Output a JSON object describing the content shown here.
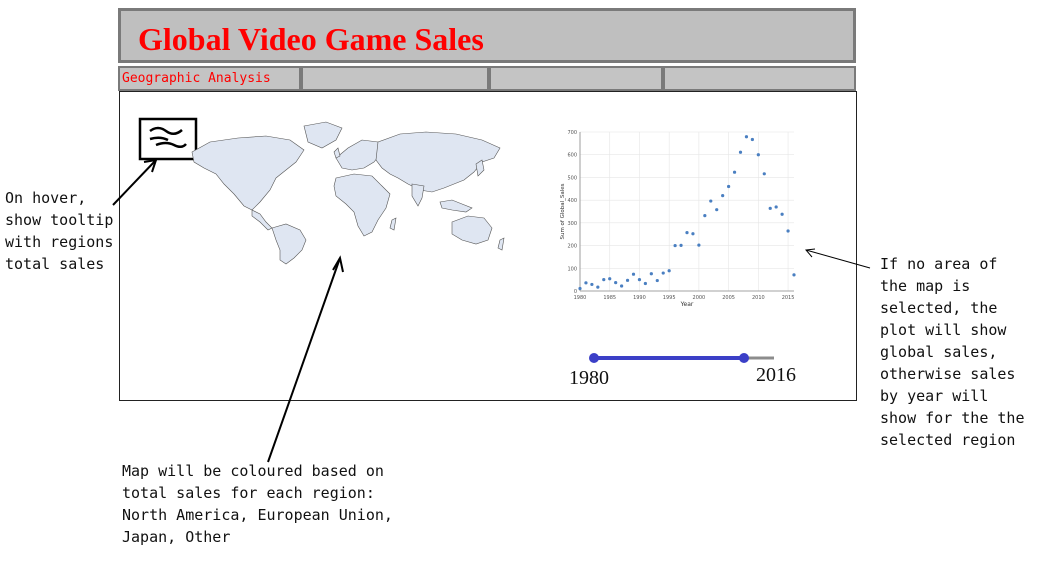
{
  "header": {
    "title": "Global Video Game Sales"
  },
  "tabs": [
    {
      "label": "Geographic Analysis"
    },
    {
      "label": ""
    },
    {
      "label": ""
    },
    {
      "label": ""
    }
  ],
  "slider": {
    "min_label": "1980",
    "max_label": "2016",
    "range_start": 1980,
    "range_end": 2010,
    "domain": [
      1980,
      2016
    ]
  },
  "annotations": {
    "hover": "On hover,\nshow tooltip\nwith regions\ntotal sales",
    "map": "Map will be coloured based on\ntotal sales for each region:\nNorth America, European Union,\nJapan, Other",
    "plot": "If no area of\nthe map is\nselected, the\nplot will show\nglobal sales,\notherwise sales\nby year will\nshow for the the\nselected region"
  },
  "colors": {
    "title": "#ff0000",
    "tab_text": "#ff0000",
    "slider": "#3b3fc7",
    "map_fill": "#dfe6f2",
    "points": "#4a7fc1"
  },
  "chart_data": {
    "type": "scatter",
    "xlabel": "Year",
    "ylabel": "Sum of Global_Sales",
    "xlim": [
      1980,
      2016
    ],
    "ylim": [
      0,
      700
    ],
    "xticks": [
      1980,
      1985,
      1990,
      1995,
      2000,
      2005,
      2010,
      2015
    ],
    "yticks": [
      0,
      100,
      200,
      300,
      400,
      500,
      600,
      700
    ],
    "grid": true,
    "x": [
      1980,
      1981,
      1982,
      1983,
      1984,
      1985,
      1986,
      1987,
      1988,
      1989,
      1990,
      1991,
      1992,
      1993,
      1994,
      1995,
      1996,
      1997,
      1998,
      1999,
      2000,
      2001,
      2002,
      2003,
      2004,
      2005,
      2006,
      2007,
      2008,
      2009,
      2010,
      2011,
      2012,
      2013,
      2014,
      2015,
      2016
    ],
    "y": [
      11,
      36,
      29,
      17,
      50,
      54,
      37,
      22,
      47,
      74,
      50,
      33,
      76,
      46,
      79,
      89,
      200,
      201,
      257,
      252,
      202,
      332,
      396,
      358,
      420,
      460,
      523,
      611,
      679,
      667,
      600,
      516,
      364,
      370,
      338,
      264,
      71
    ]
  }
}
